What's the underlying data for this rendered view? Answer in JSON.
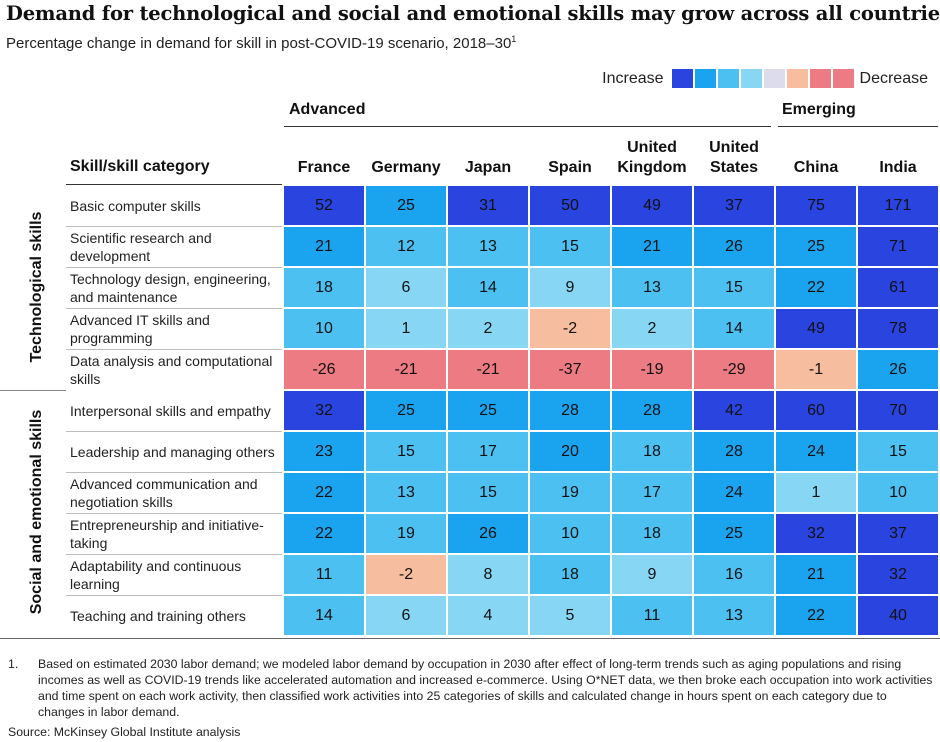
{
  "title": "Demand for technological and social and emotional skills may grow across all countries.",
  "subtitle": "Percentage change in demand for skill in post-COVID-19 scenario, 2018–30",
  "subtitle_note_marker": "1",
  "legend": {
    "increase_label": "Increase",
    "decrease_label": "Decrease",
    "colors": [
      "#2a44e0",
      "#1aa3ef",
      "#4dc0f2",
      "#87d6f3",
      "#dcdcec",
      "#f6be9f",
      "#ec7b83",
      "#ec7b83"
    ]
  },
  "groups": [
    {
      "label": "Advanced"
    },
    {
      "label": "Emerging"
    }
  ],
  "skill_header": "Skill/skill category",
  "categories": [
    {
      "label": "Technological skills"
    },
    {
      "label": "Social and emotional skills"
    }
  ],
  "columns": [
    "France",
    "Germany",
    "Japan",
    "Spain",
    "United Kingdom",
    "United States",
    "China",
    "India"
  ],
  "chart_data": {
    "type": "heatmap",
    "title": "Demand for technological and social and emotional skills may grow across all countries.",
    "subtitle": "Percentage change in demand for skill in post-COVID-19 scenario, 2018–30",
    "x": [
      "France",
      "Germany",
      "Japan",
      "Spain",
      "United Kingdom",
      "United States",
      "China",
      "India"
    ],
    "rows": [
      {
        "category": "Technological skills",
        "skill": "Basic computer skills",
        "values": [
          52,
          25,
          31,
          50,
          49,
          37,
          75,
          171
        ]
      },
      {
        "category": "Technological skills",
        "skill": "Scientific research and development",
        "values": [
          21,
          12,
          13,
          15,
          21,
          26,
          25,
          71
        ]
      },
      {
        "category": "Technological skills",
        "skill": "Technology design, engineering, and maintenance",
        "values": [
          18,
          6,
          14,
          9,
          13,
          15,
          22,
          61
        ]
      },
      {
        "category": "Technological skills",
        "skill": "Advanced IT skills and programming",
        "values": [
          10,
          1,
          2,
          -2,
          2,
          14,
          49,
          78
        ]
      },
      {
        "category": "Technological skills",
        "skill": "Data analysis and computational skills",
        "values": [
          -26,
          -21,
          -21,
          -37,
          -19,
          -29,
          -1,
          26
        ]
      },
      {
        "category": "Social and emotional skills",
        "skill": "Interpersonal skills and empathy",
        "values": [
          32,
          25,
          25,
          28,
          28,
          42,
          60,
          70
        ]
      },
      {
        "category": "Social and emotional skills",
        "skill": "Leadership and managing others",
        "values": [
          23,
          15,
          17,
          20,
          18,
          28,
          24,
          15
        ]
      },
      {
        "category": "Social and emotional skills",
        "skill": "Advanced communication and negotiation skills",
        "values": [
          22,
          13,
          15,
          19,
          17,
          24,
          1,
          10
        ]
      },
      {
        "category": "Social and emotional skills",
        "skill": "Entrepreneurship and initiative-taking",
        "values": [
          22,
          19,
          26,
          10,
          18,
          25,
          32,
          37
        ]
      },
      {
        "category": "Social and emotional skills",
        "skill": "Adaptability and continuous learning",
        "values": [
          11,
          -2,
          8,
          18,
          9,
          16,
          21,
          32
        ]
      },
      {
        "category": "Social and emotional skills",
        "skill": "Teaching and training others",
        "values": [
          14,
          6,
          4,
          5,
          11,
          13,
          22,
          40
        ]
      }
    ]
  },
  "footnote": {
    "number": "1.",
    "text": "Based on estimated 2030 labor demand; we modeled labor demand by occupation in 2030 after effect of long-term trends such as aging populations and rising incomes as well as COVID-19 trends like accelerated automation and increased e-commerce. Using O*NET data, we then broke each occupation into work activities and time spent on each work activity, then classified work activities into 25 categories of skills and calculated change in hours spent on each category due to changes in labor demand."
  },
  "source": "Source: McKinsey Global Institute analysis"
}
